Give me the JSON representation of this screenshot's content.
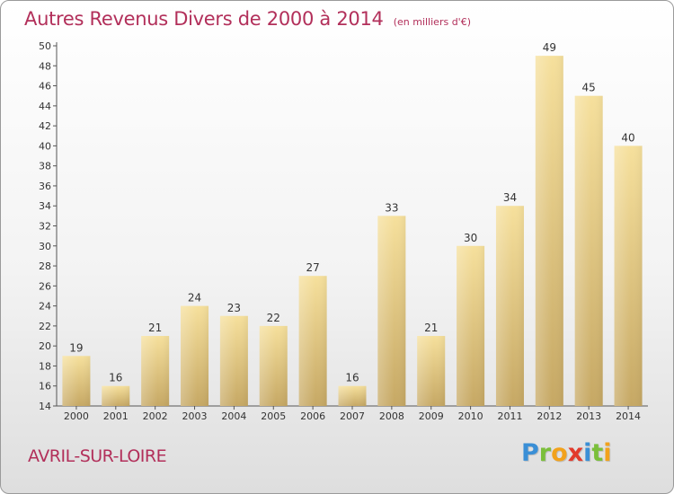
{
  "chart_data": {
    "type": "bar",
    "title": "Autres Revenus Divers de 2000 à 2014",
    "subtitle": "(en milliers d'€)",
    "categories": [
      "2000",
      "2001",
      "2002",
      "2003",
      "2004",
      "2005",
      "2006",
      "2007",
      "2008",
      "2009",
      "2010",
      "2011",
      "2012",
      "2013",
      "2014"
    ],
    "values": [
      19,
      16,
      21,
      24,
      23,
      22,
      27,
      16,
      33,
      21,
      30,
      34,
      49,
      45,
      40
    ],
    "ylim": [
      14,
      50
    ],
    "yticks": [
      14,
      16,
      18,
      20,
      22,
      24,
      26,
      28,
      30,
      32,
      34,
      36,
      38,
      40,
      42,
      44,
      46,
      48,
      50
    ],
    "xlabel": "",
    "ylabel": "",
    "grid": false,
    "legend": "none",
    "colors": {
      "bar": "#e9cf8a",
      "bar_dark": "#c8a862",
      "title": "#b22f5a"
    }
  },
  "commune": "AVRIL-SUR-LOIRE",
  "logo": {
    "letters": [
      {
        "char": "P",
        "color": "#3a8fd6"
      },
      {
        "char": "r",
        "color": "#7bbf3a"
      },
      {
        "char": "o",
        "color": "#f2a21c"
      },
      {
        "char": "x",
        "color": "#e23a2c"
      },
      {
        "char": "i",
        "color": "#3a8fd6"
      },
      {
        "char": "t",
        "color": "#7bbf3a"
      },
      {
        "char": "i",
        "color": "#f2a21c"
      }
    ]
  }
}
